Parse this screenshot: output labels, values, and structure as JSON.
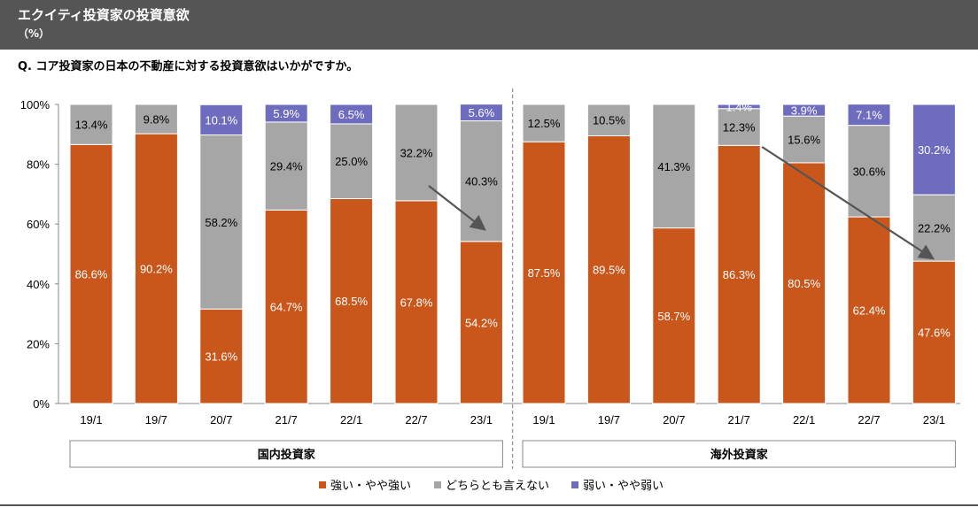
{
  "header": {
    "title": "エクイティ投資家の投資意欲",
    "unit": "（%）"
  },
  "question": "Q. コア投資家の日本の不動産に対する投資意欲はいかがですか。",
  "chart_data": {
    "type": "bar",
    "stacked": true,
    "ylim": [
      0,
      100
    ],
    "yticks": [
      "0%",
      "20%",
      "40%",
      "60%",
      "80%",
      "100%"
    ],
    "colors": {
      "strong": "#C9561A",
      "neutral": "#A6A6A6",
      "weak": "#6E6CBF"
    },
    "legend": [
      "強い・やや強い",
      "どちらとも言えない",
      "弱い・やや弱い"
    ],
    "groups": [
      {
        "name": "国内投資家",
        "categories": [
          "19/1",
          "19/7",
          "20/7",
          "21/7",
          "22/1",
          "22/7",
          "23/1"
        ],
        "series": [
          {
            "name": "強い・やや強い",
            "values": [
              86.6,
              90.2,
              31.6,
              64.7,
              68.5,
              67.8,
              54.2
            ],
            "labels": [
              "86.6%",
              "90.2%",
              "31.6%",
              "64.7%",
              "68.5%",
              "67.8%",
              "54.2%"
            ]
          },
          {
            "name": "どちらとも言えない",
            "values": [
              13.4,
              9.8,
              58.2,
              29.4,
              25.0,
              32.2,
              40.3
            ],
            "labels": [
              "13.4%",
              "9.8%",
              "58.2%",
              "29.4%",
              "25.0%",
              "32.2%",
              "40.3%"
            ]
          },
          {
            "name": "弱い・やや弱い",
            "values": [
              0,
              0,
              10.1,
              5.9,
              6.5,
              0,
              5.6
            ],
            "labels": [
              "",
              "",
              "10.1%",
              "5.9%",
              "6.5%",
              "",
              "5.6%"
            ]
          }
        ]
      },
      {
        "name": "海外投資家",
        "categories": [
          "19/1",
          "19/7",
          "20/7",
          "21/7",
          "22/1",
          "22/7",
          "23/1"
        ],
        "series": [
          {
            "name": "強い・やや強い",
            "values": [
              87.5,
              89.5,
              58.7,
              86.3,
              80.5,
              62.4,
              47.6
            ],
            "labels": [
              "87.5%",
              "89.5%",
              "58.7%",
              "86.3%",
              "80.5%",
              "62.4%",
              "47.6%"
            ]
          },
          {
            "name": "どちらとも言えない",
            "values": [
              12.5,
              10.5,
              41.3,
              12.3,
              15.6,
              30.6,
              22.2
            ],
            "labels": [
              "12.5%",
              "10.5%",
              "41.3%",
              "12.3%",
              "15.6%",
              "30.6%",
              "22.2%"
            ]
          },
          {
            "name": "弱い・やや弱い",
            "values": [
              0,
              0,
              0,
              1.4,
              3.9,
              7.1,
              30.2
            ],
            "labels": [
              "",
              "",
              "",
              "1.4%",
              "3.9%",
              "7.1%",
              "30.2%"
            ]
          }
        ]
      }
    ],
    "trend_arrows": [
      {
        "group": 0,
        "from_category": 5,
        "to_category": 6
      },
      {
        "group": 1,
        "from_category": 3,
        "to_category": 6
      }
    ]
  }
}
